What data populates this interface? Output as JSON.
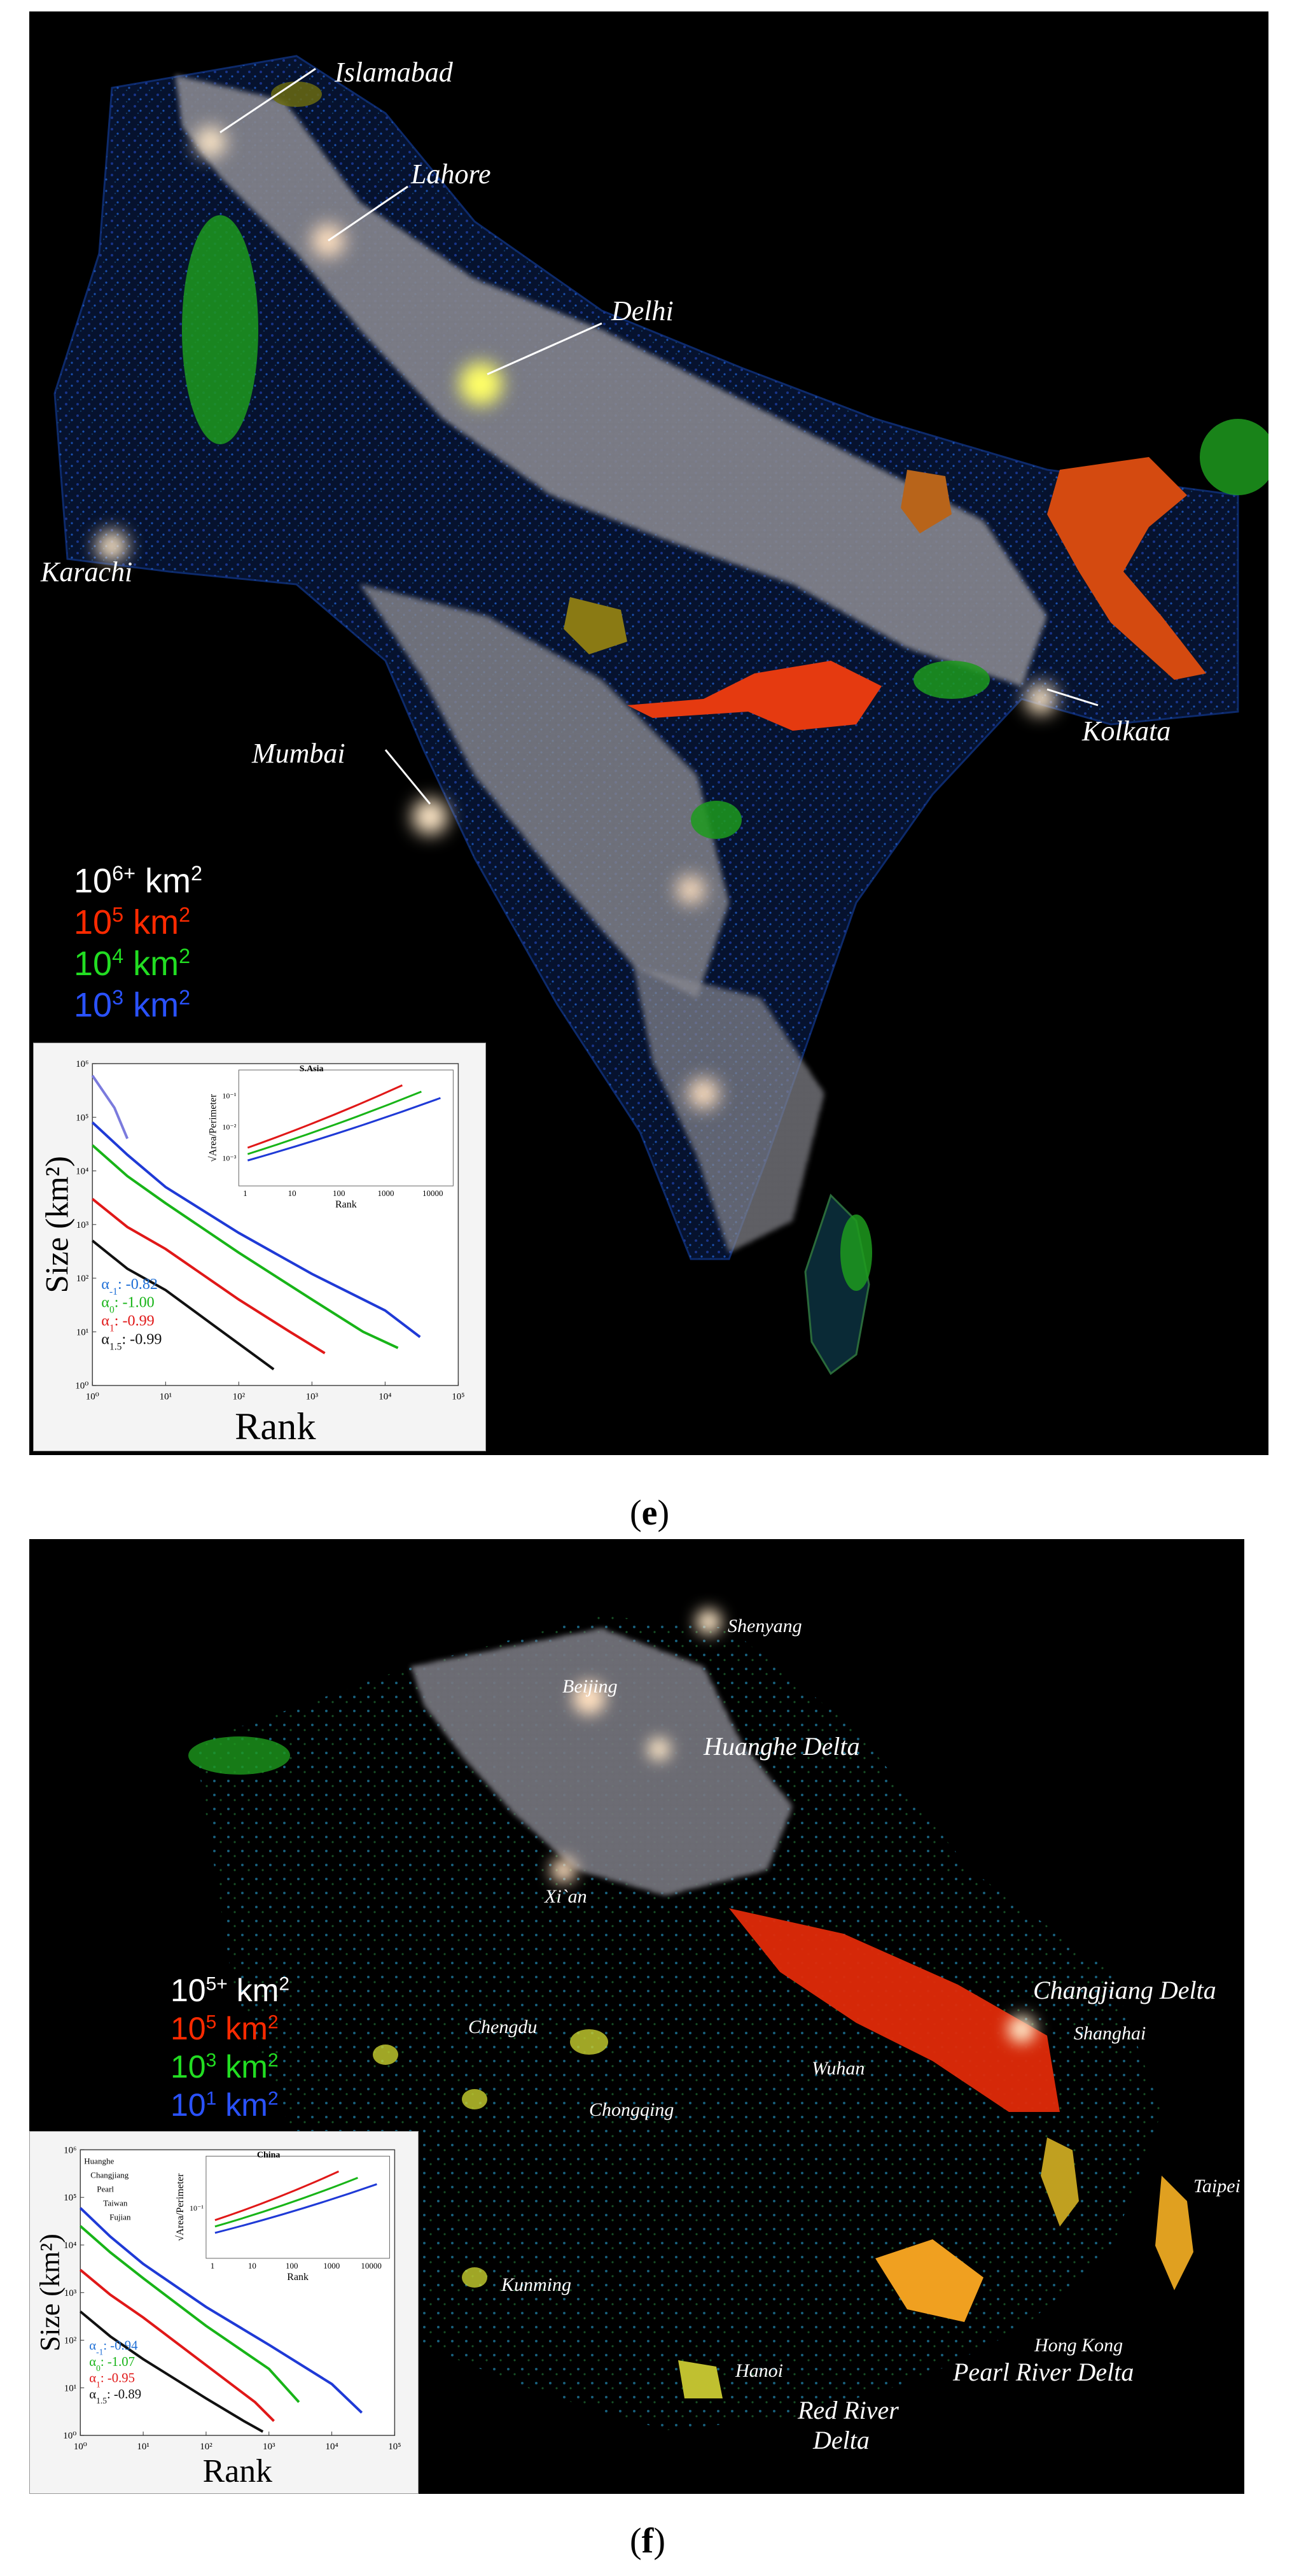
{
  "panels": [
    {
      "id": "e",
      "label": "e",
      "cities": [
        {
          "key": "islamabad",
          "name": "Islamabad"
        },
        {
          "key": "lahore",
          "name": "Lahore"
        },
        {
          "key": "delhi",
          "name": "Delhi"
        },
        {
          "key": "karachi",
          "name": "Karachi"
        },
        {
          "key": "mumbai",
          "name": "Mumbai"
        },
        {
          "key": "kolkata",
          "name": "Kolkata"
        }
      ],
      "legend": [
        {
          "base": "10",
          "exp": "6+",
          "unit": "km",
          "unit_exp": "2",
          "color": "#ffffff"
        },
        {
          "base": "10",
          "exp": "5",
          "unit": "km",
          "unit_exp": "2",
          "color": "#ff2a00"
        },
        {
          "base": "10",
          "exp": "4",
          "unit": "km",
          "unit_exp": "2",
          "color": "#22dd22"
        },
        {
          "base": "10",
          "exp": "3",
          "unit": "km",
          "unit_exp": "2",
          "color": "#2a52ff"
        }
      ],
      "chart_data": {
        "type": "line",
        "title": "S.Asia",
        "xlabel": "Rank",
        "ylabel": "Size (km²)",
        "x_scale": "log",
        "y_scale": "log",
        "xlim": [
          1,
          100000
        ],
        "ylim": [
          1,
          1000000
        ],
        "x_ticks": [
          "10⁰",
          "10¹",
          "10²",
          "10³",
          "10⁴",
          "10⁵"
        ],
        "y_ticks": [
          "10⁰",
          "10¹",
          "10²",
          "10³",
          "10⁴",
          "10⁵",
          "10⁶"
        ],
        "series": [
          {
            "color": "#1f3ad6",
            "points": [
              [
                1,
                80000
              ],
              [
                3,
                20000
              ],
              [
                10,
                5000
              ],
              [
                100,
                700
              ],
              [
                1000,
                120
              ],
              [
                10000,
                25
              ],
              [
                30000,
                8
              ]
            ]
          },
          {
            "color": "#18b418",
            "points": [
              [
                1,
                30000
              ],
              [
                3,
                8000
              ],
              [
                10,
                2500
              ],
              [
                100,
                300
              ],
              [
                1000,
                40
              ],
              [
                5000,
                10
              ],
              [
                15000,
                5
              ]
            ]
          },
          {
            "color": "#e01818",
            "points": [
              [
                1,
                3000
              ],
              [
                3,
                900
              ],
              [
                10,
                350
              ],
              [
                100,
                40
              ],
              [
                500,
                10
              ],
              [
                1500,
                4
              ]
            ]
          },
          {
            "color": "#111111",
            "points": [
              [
                1,
                500
              ],
              [
                3,
                150
              ],
              [
                10,
                60
              ],
              [
                50,
                12
              ],
              [
                150,
                4
              ],
              [
                300,
                2
              ]
            ]
          },
          {
            "color": "#7b7bdd",
            "points": [
              [
                1,
                600000
              ],
              [
                2,
                150000
              ],
              [
                3,
                40000
              ]
            ]
          }
        ],
        "alphas": [
          {
            "sym": "α",
            "sub": "-1",
            "value": ": -0.82",
            "color": "#1f6fd6"
          },
          {
            "sym": "α",
            "sub": "0",
            "value": ": -1.00",
            "color": "#18b418"
          },
          {
            "sym": "α",
            "sub": "1",
            "value": ": -0.99",
            "color": "#e01818"
          },
          {
            "sym": "α",
            "sub": "1.5",
            "value": ": -0.99",
            "color": "#111111"
          }
        ],
        "inset": {
          "ylabel": "√Area/Perimeter",
          "xlabel": "Rank",
          "x_ticks": [
            "1",
            "10",
            "100",
            "1000",
            "10000"
          ],
          "y_ticks": [
            "10⁻³",
            "10⁻²",
            "10⁻¹"
          ]
        }
      }
    },
    {
      "id": "f",
      "label": "f",
      "cities": [
        {
          "key": "shenyang",
          "name": "Shenyang"
        },
        {
          "key": "beijing",
          "name": "Beijing"
        },
        {
          "key": "huanghe",
          "name": "Huanghe Delta"
        },
        {
          "key": "xian",
          "name": "Xi`an"
        },
        {
          "key": "changjiang",
          "name": "Changjiang Delta"
        },
        {
          "key": "shanghai",
          "name": "Shanghai"
        },
        {
          "key": "chengdu",
          "name": "Chengdu"
        },
        {
          "key": "wuhan",
          "name": "Wuhan"
        },
        {
          "key": "chongqing",
          "name": "Chongqing"
        },
        {
          "key": "kunming",
          "name": "Kunming"
        },
        {
          "key": "taipei",
          "name": "Taipei"
        },
        {
          "key": "hongkong",
          "name": "Hong Kong"
        },
        {
          "key": "pearl",
          "name": "Pearl River Delta"
        },
        {
          "key": "hanoi",
          "name": "Hanoi"
        },
        {
          "key": "redriver",
          "name": "Red River"
        },
        {
          "key": "redriver2",
          "name": "Delta"
        }
      ],
      "legend": [
        {
          "base": "10",
          "exp": "5+",
          "unit": "km",
          "unit_exp": "2",
          "color": "#ffffff"
        },
        {
          "base": "10",
          "exp": "5",
          "unit": "km",
          "unit_exp": "2",
          "color": "#ff2a00"
        },
        {
          "base": "10",
          "exp": "3",
          "unit": "km",
          "unit_exp": "2",
          "color": "#22dd22"
        },
        {
          "base": "10",
          "exp": "1",
          "unit": "km",
          "unit_exp": "2",
          "color": "#2a52ff"
        }
      ],
      "chart_data": {
        "type": "line",
        "title": "China",
        "xlabel": "Rank",
        "ylabel": "Size (km²)",
        "x_scale": "log",
        "y_scale": "log",
        "xlim": [
          1,
          100000
        ],
        "ylim": [
          1,
          1000000
        ],
        "x_ticks": [
          "10⁰",
          "10¹",
          "10²",
          "10³",
          "10⁴",
          "10⁵"
        ],
        "y_ticks": [
          "10⁰",
          "10¹",
          "10²",
          "10³",
          "10⁴",
          "10⁵",
          "10⁶"
        ],
        "series": [
          {
            "color": "#1f3ad6",
            "points": [
              [
                1,
                60000
              ],
              [
                3,
                15000
              ],
              [
                10,
                4000
              ],
              [
                100,
                500
              ],
              [
                1000,
                80
              ],
              [
                10000,
                12
              ],
              [
                30000,
                3
              ]
            ]
          },
          {
            "color": "#18b418",
            "points": [
              [
                1,
                25000
              ],
              [
                3,
                7000
              ],
              [
                10,
                2000
              ],
              [
                100,
                200
              ],
              [
                1000,
                25
              ],
              [
                3000,
                5
              ]
            ]
          },
          {
            "color": "#e01818",
            "points": [
              [
                1,
                3000
              ],
              [
                3,
                900
              ],
              [
                10,
                300
              ],
              [
                100,
                30
              ],
              [
                600,
                5
              ],
              [
                1200,
                2
              ]
            ]
          },
          {
            "color": "#111111",
            "points": [
              [
                1,
                400
              ],
              [
                3,
                120
              ],
              [
                10,
                40
              ],
              [
                100,
                6
              ],
              [
                400,
                2
              ],
              [
                800,
                1.2
              ]
            ]
          }
        ],
        "series_labels": [
          "Huanghe",
          "Changjiang",
          "Pearl",
          "Taiwan",
          "Fujian"
        ],
        "alphas": [
          {
            "sym": "α",
            "sub": "-1",
            "value": ": -0.94",
            "color": "#1f6fd6"
          },
          {
            "sym": "α",
            "sub": "0",
            "value": ": -1.07",
            "color": "#18b418"
          },
          {
            "sym": "α",
            "sub": "1",
            "value": ": -0.95",
            "color": "#e01818"
          },
          {
            "sym": "α",
            "sub": "1.5",
            "value": ": -0.89",
            "color": "#111111"
          }
        ],
        "inset": {
          "ylabel": "√Area/Perimeter",
          "xlabel": "Rank",
          "x_ticks": [
            "1",
            "10",
            "100",
            "1000",
            "10000"
          ],
          "y_ticks": [
            "10⁻¹"
          ]
        }
      }
    }
  ]
}
